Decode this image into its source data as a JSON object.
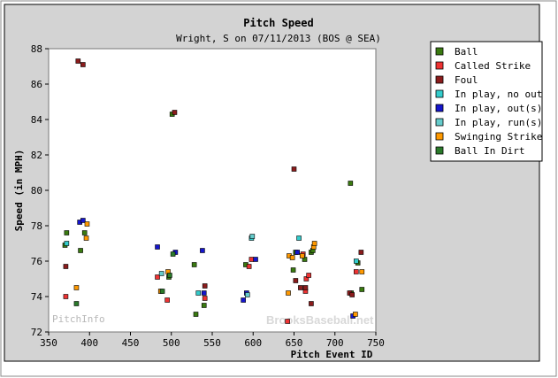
{
  "chart_data": {
    "type": "scatter",
    "title": "Pitch Speed",
    "subtitle": "Wright, S on 07/11/2013 (BOS @ SEA)",
    "xlabel": "Pitch Event ID",
    "ylabel": "Speed (in MPH)",
    "xlim": [
      350,
      750
    ],
    "ylim": [
      72,
      88
    ],
    "x_ticks": [
      350,
      400,
      450,
      500,
      550,
      600,
      650,
      700,
      750
    ],
    "y_ticks": [
      72,
      74,
      76,
      78,
      80,
      82,
      84,
      86,
      88
    ],
    "grid": false,
    "legend_position": "right",
    "watermarks": [
      "PitchInfo",
      "BrooksBaseball.net"
    ],
    "series": [
      {
        "name": "Ball",
        "color": "#3a7a10",
        "points": [
          [
            370,
            76.9
          ],
          [
            372,
            77.6
          ],
          [
            389,
            76.6
          ],
          [
            394,
            77.6
          ],
          [
            497,
            75.1
          ],
          [
            501,
            84.3
          ],
          [
            528,
            75.8
          ],
          [
            530,
            73.0
          ],
          [
            540,
            73.5
          ],
          [
            591,
            75.8
          ],
          [
            649,
            75.5
          ],
          [
            652,
            76.5
          ],
          [
            663,
            76.1
          ],
          [
            671,
            76.5
          ],
          [
            673,
            76.6
          ],
          [
            719,
            80.4
          ],
          [
            720,
            74.2
          ],
          [
            728,
            75.9
          ],
          [
            733,
            74.4
          ]
        ]
      },
      {
        "name": "Called Strike",
        "color": "#ee3333",
        "points": [
          [
            371,
            74.0
          ],
          [
            483,
            75.1
          ],
          [
            495,
            73.8
          ],
          [
            541,
            73.9
          ],
          [
            595,
            75.7
          ],
          [
            598,
            76.1
          ],
          [
            642,
            72.6
          ],
          [
            661,
            76.4
          ],
          [
            664,
            74.3
          ],
          [
            665,
            75.0
          ],
          [
            668,
            75.2
          ],
          [
            726,
            75.4
          ]
        ]
      },
      {
        "name": "Foul",
        "color": "#8b1c1c",
        "points": [
          [
            371,
            75.7
          ],
          [
            386,
            87.3
          ],
          [
            392,
            87.1
          ],
          [
            504,
            84.4
          ],
          [
            541,
            74.6
          ],
          [
            650,
            81.2
          ],
          [
            652,
            74.9
          ],
          [
            658,
            74.5
          ],
          [
            664,
            74.5
          ],
          [
            671,
            73.6
          ],
          [
            718,
            74.2
          ],
          [
            721,
            74.1
          ],
          [
            732,
            76.5
          ]
        ]
      },
      {
        "name": "In play, no out",
        "color": "#33cccc",
        "points": [
          [
            372,
            77.0
          ],
          [
            533,
            74.2
          ],
          [
            598,
            77.3
          ],
          [
            656,
            77.3
          ],
          [
            726,
            76.0
          ]
        ]
      },
      {
        "name": "In play, out(s)",
        "color": "#1515cc",
        "points": [
          [
            388,
            78.2
          ],
          [
            392,
            78.3
          ],
          [
            483,
            76.8
          ],
          [
            505,
            76.5
          ],
          [
            538,
            76.6
          ],
          [
            540,
            74.2
          ],
          [
            588,
            73.8
          ],
          [
            592,
            74.2
          ],
          [
            603,
            76.1
          ],
          [
            654,
            76.5
          ],
          [
            722,
            72.9
          ]
        ]
      },
      {
        "name": "In play, run(s)",
        "color": "#66cccc",
        "points": [
          [
            488,
            75.3
          ],
          [
            593,
            74.1
          ],
          [
            599,
            77.4
          ]
        ]
      },
      {
        "name": "Swinging Strike",
        "color": "#ff9900",
        "points": [
          [
            384,
            74.5
          ],
          [
            396,
            77.3
          ],
          [
            397,
            78.1
          ],
          [
            487,
            74.3
          ],
          [
            496,
            75.4
          ],
          [
            643,
            74.2
          ],
          [
            644,
            76.3
          ],
          [
            648,
            76.2
          ],
          [
            660,
            76.3
          ],
          [
            674,
            76.8
          ],
          [
            675,
            77.0
          ],
          [
            725,
            73.0
          ],
          [
            733,
            75.4
          ]
        ]
      },
      {
        "name": "Ball In Dirt",
        "color": "#2a7a2a",
        "points": [
          [
            384,
            73.6
          ],
          [
            489,
            74.3
          ],
          [
            498,
            75.2
          ],
          [
            502,
            76.4
          ]
        ]
      }
    ]
  }
}
